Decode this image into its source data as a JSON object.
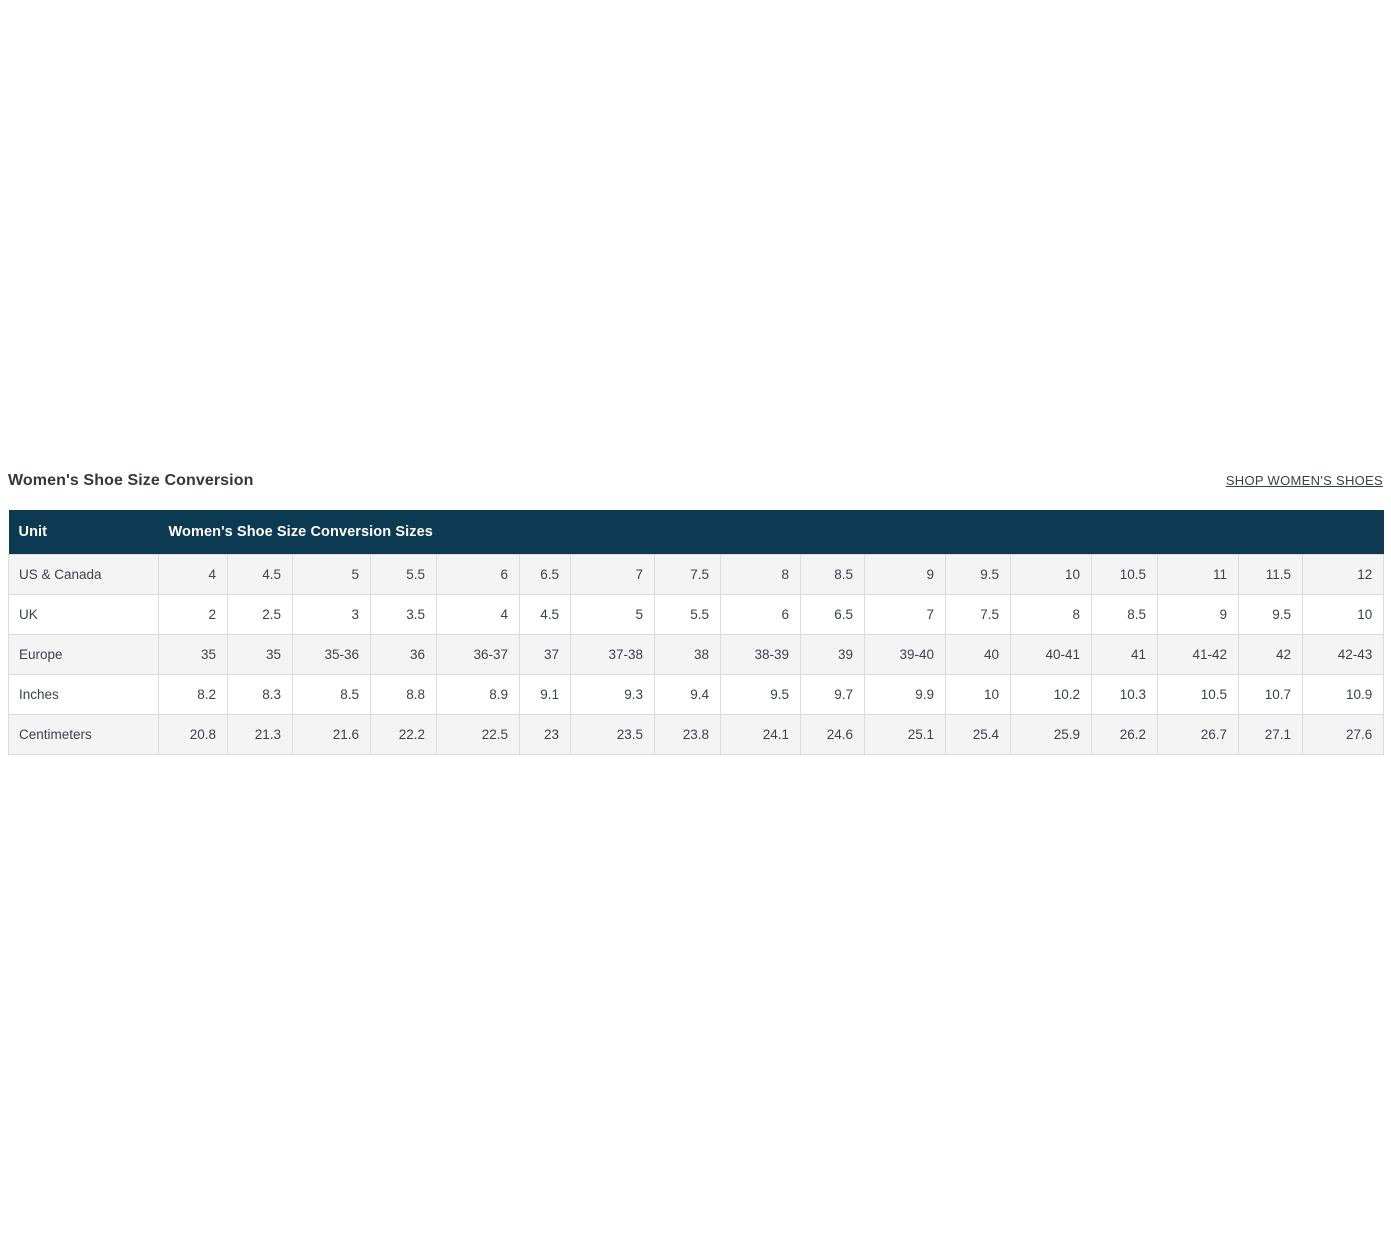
{
  "page": {
    "title": "Women's Shoe Size Conversion",
    "shop_link_label": "SHOP WOMEN'S SHOES"
  },
  "table": {
    "header": {
      "unit_label": "Unit",
      "sizes_label": "Women's Shoe Size Conversion Sizes"
    },
    "rows": [
      {
        "label": "US & Canada",
        "values": [
          "4",
          "4.5",
          "5",
          "5.5",
          "6",
          "6.5",
          "7",
          "7.5",
          "8",
          "8.5",
          "9",
          "9.5",
          "10",
          "10.5",
          "11",
          "11.5",
          "12"
        ]
      },
      {
        "label": "UK",
        "values": [
          "2",
          "2.5",
          "3",
          "3.5",
          "4",
          "4.5",
          "5",
          "5.5",
          "6",
          "6.5",
          "7",
          "7.5",
          "8",
          "8.5",
          "9",
          "9.5",
          "10"
        ]
      },
      {
        "label": "Europe",
        "values": [
          "35",
          "35",
          "35-36",
          "36",
          "36-37",
          "37",
          "37-38",
          "38",
          "38-39",
          "39",
          "39-40",
          "40",
          "40-41",
          "41",
          "41-42",
          "42",
          "42-43"
        ]
      },
      {
        "label": "Inches",
        "values": [
          "8.2",
          "8.3",
          "8.5",
          "8.8",
          "8.9",
          "9.1",
          "9.3",
          "9.4",
          "9.5",
          "9.7",
          "9.9",
          "10",
          "10.2",
          "10.3",
          "10.5",
          "10.7",
          "10.9"
        ]
      },
      {
        "label": "Centimeters",
        "values": [
          "20.8",
          "21.3",
          "21.6",
          "22.2",
          "22.5",
          "23",
          "23.5",
          "23.8",
          "24.1",
          "24.6",
          "25.1",
          "25.4",
          "25.9",
          "26.2",
          "26.7",
          "27.1",
          "27.6"
        ]
      }
    ]
  },
  "colors": {
    "header_bg": "#0d3a53",
    "header_text": "#ffffff",
    "stripe_bg": "#f4f4f5",
    "border": "#dcdcdc",
    "body_text": "#3c4249",
    "title_text": "#33383d"
  }
}
